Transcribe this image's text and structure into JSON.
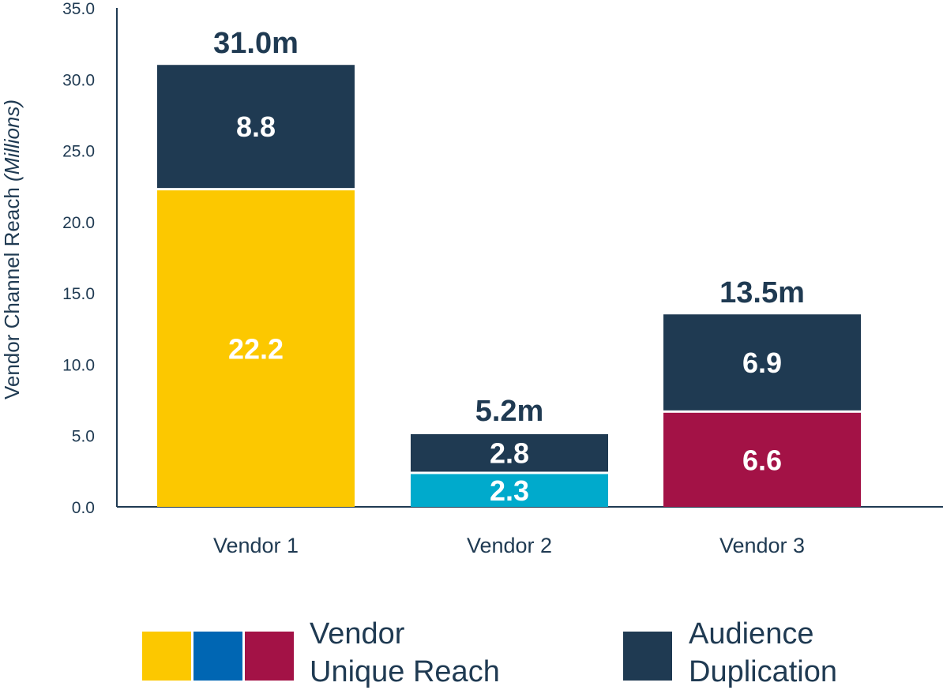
{
  "chart_data": {
    "type": "bar",
    "stacked": true,
    "categories": [
      "Vendor 1",
      "Vendor 2",
      "Vendor 3"
    ],
    "ylabel_main": "Vendor Channel Reach ",
    "ylabel_unit": "(Millions)",
    "yticks": [
      "0.0",
      "5.0",
      "10.0",
      "15.0",
      "20.0",
      "25.0",
      "30.0",
      "35.0"
    ],
    "ylim": [
      0,
      35
    ],
    "grid": false,
    "series": [
      {
        "name": "Vendor Unique Reach",
        "values": [
          22.2,
          2.3,
          6.6
        ],
        "labels": [
          "22.2",
          "2.3",
          "6.6"
        ],
        "colors": [
          "#fcc800",
          "#00aacc",
          "#a31246"
        ]
      },
      {
        "name": "Audience Duplication",
        "values": [
          8.8,
          2.8,
          6.9
        ],
        "labels": [
          "8.8",
          "2.8",
          "6.9"
        ],
        "colors": [
          "#1f3a52",
          "#1f3a52",
          "#1f3a52"
        ]
      }
    ],
    "totals": [
      31.0,
      5.2,
      13.5
    ],
    "total_labels": [
      "31.0m",
      "5.2m",
      "13.5m"
    ],
    "legend": {
      "placement": "bottom",
      "items": [
        {
          "label_lines": [
            "Vendor",
            "Unique Reach"
          ],
          "swatches": [
            "#fcc800",
            "#0066b3",
            "#a31246"
          ]
        },
        {
          "label_lines": [
            "Audience",
            "Duplication"
          ],
          "swatches": [
            "#1f3a52"
          ]
        }
      ]
    },
    "colors": {
      "text": "#1f3a52",
      "axis": "#1f3a52"
    }
  }
}
